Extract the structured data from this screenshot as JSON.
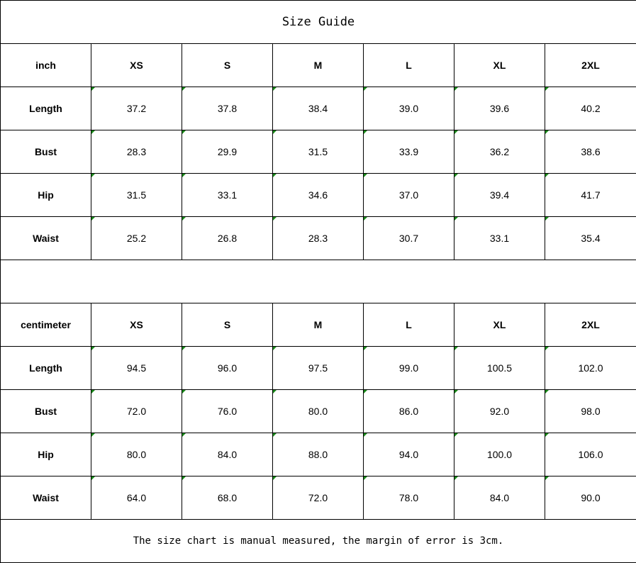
{
  "title": "Size Guide",
  "sizes": [
    "XS",
    "S",
    "M",
    "L",
    "XL",
    "2XL"
  ],
  "tables": [
    {
      "unit": "inch",
      "rows": [
        {
          "label": "Length",
          "values": [
            "37.2",
            "37.8",
            "38.4",
            "39.0",
            "39.6",
            "40.2"
          ]
        },
        {
          "label": "Bust",
          "values": [
            "28.3",
            "29.9",
            "31.5",
            "33.9",
            "36.2",
            "38.6"
          ]
        },
        {
          "label": "Hip",
          "values": [
            "31.5",
            "33.1",
            "34.6",
            "37.0",
            "39.4",
            "41.7"
          ]
        },
        {
          "label": "Waist",
          "values": [
            "25.2",
            "26.8",
            "28.3",
            "30.7",
            "33.1",
            "35.4"
          ]
        }
      ]
    },
    {
      "unit": "centimeter",
      "rows": [
        {
          "label": "Length",
          "values": [
            "94.5",
            "96.0",
            "97.5",
            "99.0",
            "100.5",
            "102.0"
          ]
        },
        {
          "label": "Bust",
          "values": [
            "72.0",
            "76.0",
            "80.0",
            "86.0",
            "92.0",
            "98.0"
          ]
        },
        {
          "label": "Hip",
          "values": [
            "80.0",
            "84.0",
            "88.0",
            "94.0",
            "100.0",
            "106.0"
          ]
        },
        {
          "label": "Waist",
          "values": [
            "64.0",
            "68.0",
            "72.0",
            "78.0",
            "84.0",
            "90.0"
          ]
        }
      ]
    }
  ],
  "note": "The size chart is manual measured, the margin of error is 3cm.",
  "colors": {
    "cell_marker": "#1a8a1a",
    "border": "#000000"
  }
}
